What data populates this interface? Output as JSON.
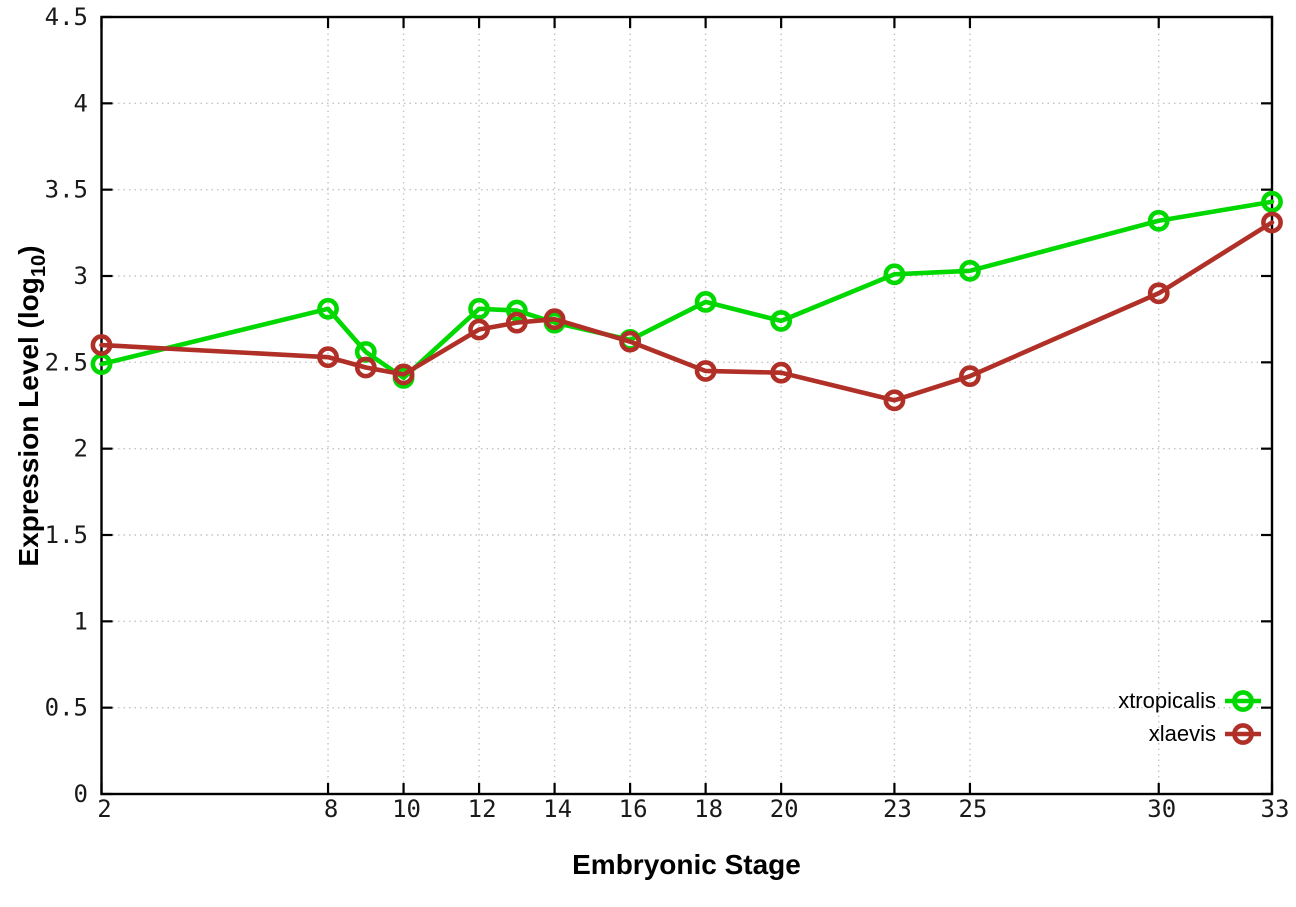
{
  "chart_data": {
    "type": "line",
    "title": "",
    "xlabel": "Embryonic Stage",
    "ylabel": "Expression Level (log10)",
    "ylabel_parts": {
      "prefix": "Expression Level (log",
      "sub": "10",
      "suffix": ")"
    },
    "xlim": [
      2,
      33
    ],
    "ylim": [
      0,
      4.5
    ],
    "grid": true,
    "legend_position": "inside-bottom-right",
    "xticks": [
      2,
      8,
      10,
      12,
      14,
      16,
      18,
      20,
      23,
      25,
      30,
      33
    ],
    "xtick_labels": [
      "2",
      "8",
      "10",
      "12",
      "14",
      "16",
      "18",
      "20",
      "23",
      "25",
      "30",
      "33"
    ],
    "yticks": [
      0,
      0.5,
      1,
      1.5,
      2,
      2.5,
      3,
      3.5,
      4,
      4.5
    ],
    "ytick_labels": [
      "0",
      "0.5",
      "1",
      "1.5",
      "2",
      "2.5",
      "3",
      "3.5",
      "4",
      "4.5"
    ],
    "x": [
      2,
      8,
      9,
      10,
      12,
      13,
      14,
      16,
      18,
      20,
      23,
      25,
      30,
      33
    ],
    "series": [
      {
        "name": "xtropicalis",
        "color": "#00d800",
        "marker": "open-circle",
        "values": [
          2.49,
          2.81,
          2.56,
          2.41,
          2.81,
          2.8,
          2.73,
          2.63,
          2.85,
          2.74,
          3.01,
          3.03,
          3.32,
          3.43
        ]
      },
      {
        "name": "xlaevis",
        "color": "#b03028",
        "marker": "open-circle",
        "values": [
          2.6,
          2.53,
          2.47,
          2.43,
          2.69,
          2.73,
          2.75,
          2.62,
          2.45,
          2.44,
          2.28,
          2.42,
          2.9,
          3.31
        ]
      }
    ],
    "colors": {
      "axis": "#000000",
      "grid": "#c4c4c4",
      "tick_text": "#1a1a1a"
    }
  }
}
